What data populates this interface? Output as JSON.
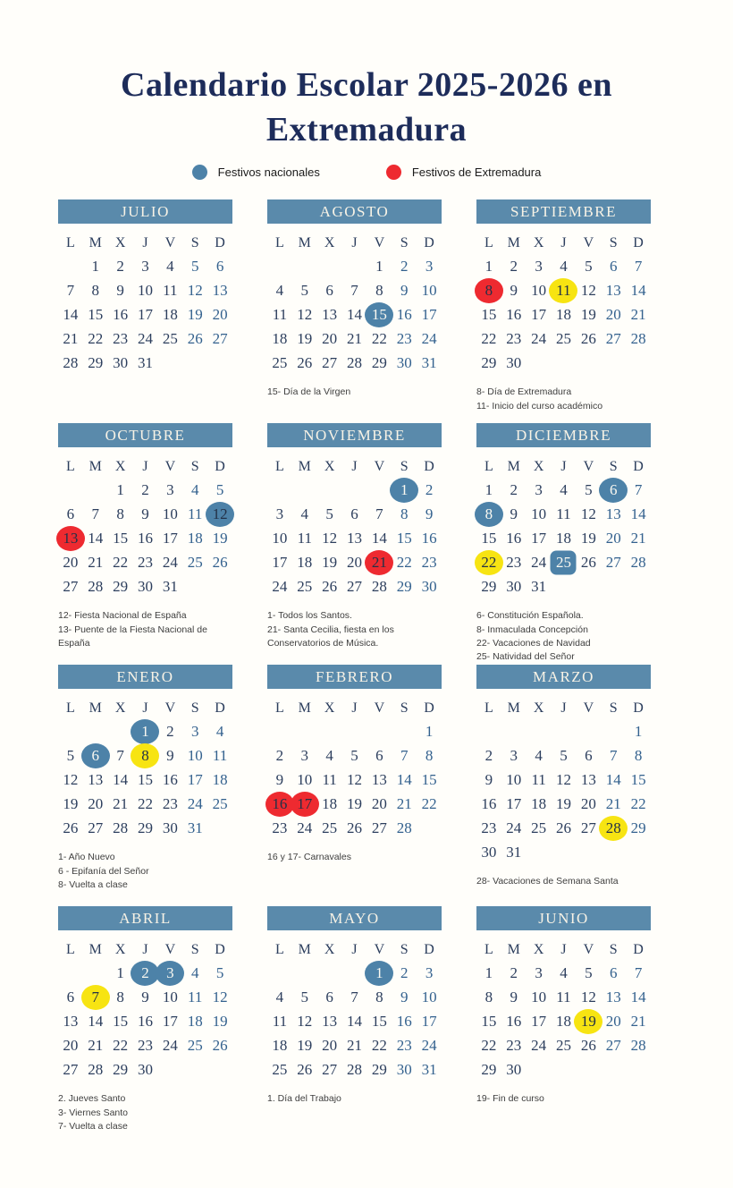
{
  "title": {
    "line1": "Calendario Escolar 2025-2026 en",
    "line2": "Extremadura"
  },
  "legend": [
    {
      "label": "Festivos nacionales",
      "color": "#4d82a8"
    },
    {
      "label": "Festivos de Extremadura",
      "color": "#ee2a30"
    }
  ],
  "weekday_headers": [
    "L",
    "M",
    "X",
    "J",
    "V",
    "S",
    "D"
  ],
  "highlight_colors": {
    "blue": "#4d82a8",
    "red": "#ee2a30",
    "yellow": "#f7e412"
  },
  "months": [
    {
      "name": "JULIO",
      "first_col": 1,
      "num_days": 31,
      "highlights": [],
      "notes": []
    },
    {
      "name": "AGOSTO",
      "first_col": 4,
      "num_days": 31,
      "highlights": [
        {
          "day": 15,
          "style": "blue",
          "text": "white"
        }
      ],
      "notes": [
        "15- Día de la Virgen"
      ]
    },
    {
      "name": "SEPTIEMBRE",
      "first_col": 0,
      "num_days": 30,
      "highlights": [
        {
          "day": 8,
          "style": "red",
          "text": "dark"
        },
        {
          "day": 11,
          "style": "yellow",
          "text": "dark"
        }
      ],
      "notes": [
        "8- Día de Extremadura",
        "11- Inicio del curso académico"
      ]
    },
    {
      "name": "OCTUBRE",
      "first_col": 2,
      "num_days": 31,
      "highlights": [
        {
          "day": 12,
          "style": "blue",
          "text": "dark"
        },
        {
          "day": 13,
          "style": "red",
          "text": "dark"
        }
      ],
      "notes": [
        "12- Fiesta Nacional de España",
        "13- Puente de la Fiesta Nacional de España"
      ]
    },
    {
      "name": "NOVIEMBRE",
      "first_col": 5,
      "num_days": 30,
      "highlights": [
        {
          "day": 1,
          "style": "blue",
          "text": "white"
        },
        {
          "day": 21,
          "style": "red",
          "text": "dark"
        }
      ],
      "notes": [
        "1- Todos los Santos.",
        "21- Santa Cecilia, fiesta en los Conservatorios de Música."
      ]
    },
    {
      "name": "DICIEMBRE",
      "first_col": 0,
      "num_days": 31,
      "highlights": [
        {
          "day": 6,
          "style": "blue",
          "text": "white"
        },
        {
          "day": 8,
          "style": "blue",
          "text": "white"
        },
        {
          "day": 22,
          "style": "yellow",
          "text": "dark"
        },
        {
          "day": 25,
          "style": "blue-square",
          "text": "white"
        }
      ],
      "notes": [
        "6- Constitución Española.",
        "8- Inmaculada Concepción",
        "22- Vacaciones de Navidad",
        "25- Natividad del Señor"
      ]
    },
    {
      "name": "ENERO",
      "first_col": 3,
      "num_days": 31,
      "highlights": [
        {
          "day": 1,
          "style": "blue",
          "text": "white"
        },
        {
          "day": 6,
          "style": "blue",
          "text": "white"
        },
        {
          "day": 8,
          "style": "yellow",
          "text": "dark"
        }
      ],
      "notes": [
        "1- Año Nuevo",
        "6 - Epifanía del Señor",
        "8- Vuelta a clase"
      ]
    },
    {
      "name": "FEBRERO",
      "first_col": 6,
      "num_days": 28,
      "highlights": [
        {
          "day": 16,
          "style": "red",
          "text": "dark"
        },
        {
          "day": 17,
          "style": "red",
          "text": "dark"
        }
      ],
      "notes": [
        "16 y 17- Carnavales"
      ]
    },
    {
      "name": "MARZO",
      "first_col": 6,
      "num_days": 31,
      "highlights": [
        {
          "day": 28,
          "style": "yellow",
          "text": "dark"
        }
      ],
      "notes": [
        "28- Vacaciones de Semana Santa"
      ]
    },
    {
      "name": "ABRIL",
      "first_col": 2,
      "num_days": 30,
      "highlights": [
        {
          "day": 2,
          "style": "blue",
          "text": "white"
        },
        {
          "day": 3,
          "style": "blue",
          "text": "white"
        },
        {
          "day": 7,
          "style": "yellow",
          "text": "dark"
        }
      ],
      "notes": [
        "2. Jueves Santo",
        "3- Viernes Santo",
        "7- Vuelta a clase"
      ]
    },
    {
      "name": "MAYO",
      "first_col": 4,
      "num_days": 31,
      "highlights": [
        {
          "day": 1,
          "style": "blue",
          "text": "white"
        }
      ],
      "notes": [
        "1. Día del Trabajo"
      ]
    },
    {
      "name": "JUNIO",
      "first_col": 0,
      "num_days": 30,
      "highlights": [
        {
          "day": 19,
          "style": "yellow",
          "text": "dark"
        }
      ],
      "notes": [
        "19- Fin de curso"
      ]
    }
  ]
}
